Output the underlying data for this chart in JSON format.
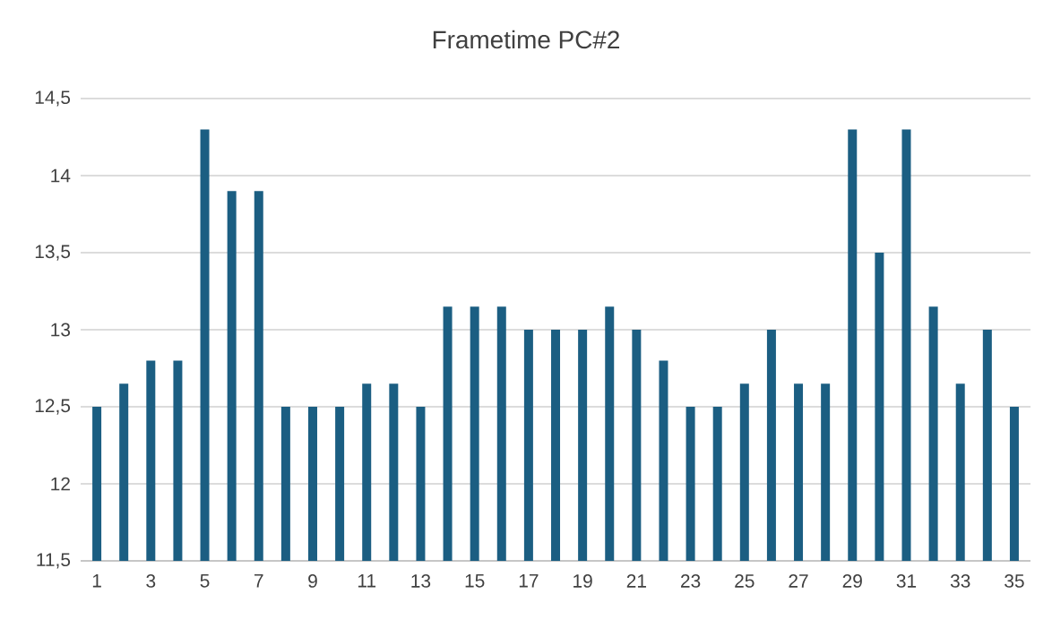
{
  "chart_data": {
    "type": "bar",
    "title": "Frametime PC#2",
    "categories": [
      "1",
      null,
      "3",
      null,
      "5",
      null,
      "7",
      null,
      "9",
      null,
      "11",
      null,
      "13",
      null,
      "15",
      null,
      "17",
      null,
      "19",
      null,
      "21",
      null,
      "23",
      null,
      "25",
      null,
      "27",
      null,
      "29",
      null,
      "31",
      null,
      "33",
      null,
      "35"
    ],
    "values": [
      12.5,
      12.65,
      12.8,
      12.8,
      14.3,
      13.9,
      13.9,
      12.5,
      12.5,
      12.5,
      12.65,
      12.65,
      12.5,
      13.15,
      13.15,
      13.15,
      13,
      13,
      13,
      13.15,
      13,
      12.8,
      12.5,
      12.5,
      12.65,
      13,
      12.65,
      12.65,
      14.3,
      13.5,
      14.3,
      13.15,
      12.65,
      13,
      12.5
    ],
    "color": "#1b5e82",
    "ylim": [
      11.5,
      14.5
    ],
    "yticks": [
      {
        "value": 11.5,
        "label": "11,5"
      },
      12,
      {
        "value": 12.5,
        "label": "12,5"
      },
      13,
      {
        "value": 13.5,
        "label": "13,5"
      },
      14,
      {
        "value": 14.5,
        "label": "14,5"
      }
    ],
    "grid": "y"
  }
}
